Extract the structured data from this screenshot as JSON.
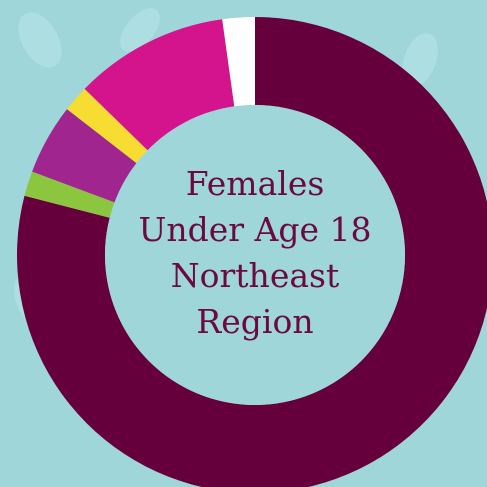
{
  "chart_data": {
    "type": "donut",
    "title_lines": [
      "Females",
      "Under Age 18",
      "Northeast",
      "Region"
    ],
    "values": [
      79,
      1.7,
      4.8,
      1.8,
      10.5,
      2.2
    ],
    "colors": [
      "#66003c",
      "#8cc63f",
      "#a1258f",
      "#f7dc32",
      "#d4148c",
      "#ffffff"
    ],
    "text_color": "#6a0a3e",
    "background": "#9fd6da"
  }
}
